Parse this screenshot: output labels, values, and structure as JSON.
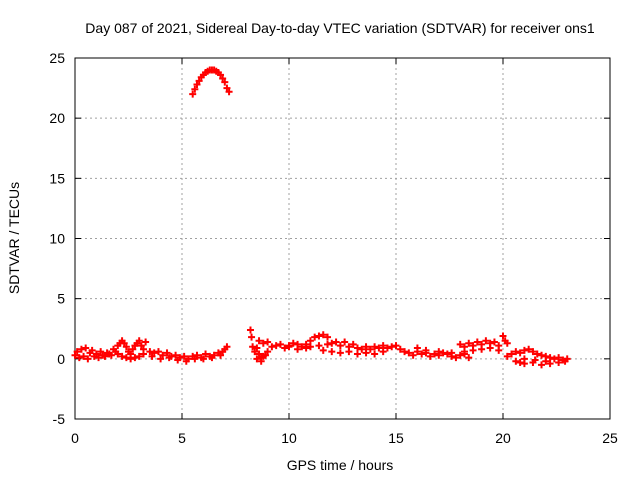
{
  "chart_data": {
    "type": "scatter",
    "title": "Day 087 of 2021, Sidereal Day-to-day VTEC variation (SDTVAR) for receiver ons1",
    "xlabel": "GPS time / hours",
    "ylabel": "SDTVAR / TECUs",
    "xlim": [
      0,
      25
    ],
    "ylim": [
      -5,
      25
    ],
    "xticks": [
      0,
      5,
      10,
      15,
      20,
      25
    ],
    "yticks": [
      -5,
      0,
      5,
      10,
      15,
      20,
      25
    ],
    "x_tick_labels": [
      "0",
      "5",
      "10",
      "15",
      "20",
      "25"
    ],
    "y_tick_labels": [
      "-5",
      "0",
      "5",
      "10",
      "15",
      "20",
      "25"
    ],
    "grid": true,
    "marker": "+",
    "color": "#ff0000",
    "series": [
      {
        "name": "ons1",
        "points": [
          [
            0.0,
            0.3
          ],
          [
            0.1,
            0.6
          ],
          [
            0.2,
            0.1
          ],
          [
            0.3,
            0.8
          ],
          [
            0.4,
            0.2
          ],
          [
            0.5,
            0.9
          ],
          [
            0.6,
            0.0
          ],
          [
            0.7,
            0.5
          ],
          [
            0.8,
            0.7
          ],
          [
            0.9,
            0.2
          ],
          [
            1.0,
            0.4
          ],
          [
            1.1,
            0.1
          ],
          [
            1.2,
            0.6
          ],
          [
            1.3,
            0.3
          ],
          [
            1.4,
            0.2
          ],
          [
            1.5,
            0.5
          ],
          [
            1.6,
            0.4
          ],
          [
            1.7,
            0.3
          ],
          [
            1.8,
            0.8
          ],
          [
            1.9,
            0.6
          ],
          [
            2.0,
            1.1
          ],
          [
            2.1,
            1.3
          ],
          [
            2.2,
            1.5
          ],
          [
            2.3,
            1.3
          ],
          [
            2.4,
            1.0
          ],
          [
            2.5,
            0.6
          ],
          [
            2.6,
            0.4
          ],
          [
            2.7,
            0.8
          ],
          [
            2.8,
            1.1
          ],
          [
            2.9,
            1.3
          ],
          [
            3.0,
            1.5
          ],
          [
            3.1,
            1.1
          ],
          [
            3.2,
            0.8
          ],
          [
            3.3,
            1.4
          ],
          [
            2.0,
            0.4
          ],
          [
            2.2,
            0.2
          ],
          [
            2.4,
            0.1
          ],
          [
            2.6,
            0.0
          ],
          [
            2.8,
            0.1
          ],
          [
            3.0,
            0.2
          ],
          [
            3.2,
            0.4
          ],
          [
            3.5,
            0.6
          ],
          [
            3.7,
            0.5
          ],
          [
            3.9,
            0.6
          ],
          [
            4.1,
            0.3
          ],
          [
            4.3,
            0.5
          ],
          [
            4.5,
            0.2
          ],
          [
            4.7,
            0.3
          ],
          [
            4.9,
            0.1
          ],
          [
            5.1,
            0.2
          ],
          [
            5.3,
            0.0
          ],
          [
            5.5,
            0.2
          ],
          [
            5.7,
            0.3
          ],
          [
            5.9,
            0.1
          ],
          [
            6.1,
            0.4
          ],
          [
            6.3,
            0.2
          ],
          [
            6.5,
            0.3
          ],
          [
            6.7,
            0.5
          ],
          [
            6.9,
            0.6
          ],
          [
            7.0,
            0.8
          ],
          [
            7.1,
            1.0
          ],
          [
            3.6,
            0.2
          ],
          [
            4.0,
            0.0
          ],
          [
            4.4,
            0.1
          ],
          [
            4.8,
            -0.1
          ],
          [
            5.2,
            -0.2
          ],
          [
            5.6,
            0.0
          ],
          [
            6.0,
            0.0
          ],
          [
            6.4,
            0.1
          ],
          [
            6.8,
            0.3
          ],
          [
            5.5,
            22.0
          ],
          [
            5.6,
            22.4
          ],
          [
            5.7,
            22.8
          ],
          [
            5.8,
            23.1
          ],
          [
            5.9,
            23.4
          ],
          [
            6.0,
            23.6
          ],
          [
            6.1,
            23.8
          ],
          [
            6.2,
            23.9
          ],
          [
            6.3,
            24.0
          ],
          [
            6.4,
            24.0
          ],
          [
            6.5,
            24.0
          ],
          [
            6.6,
            23.9
          ],
          [
            6.7,
            23.8
          ],
          [
            6.8,
            23.6
          ],
          [
            6.9,
            23.3
          ],
          [
            7.0,
            23.0
          ],
          [
            7.1,
            22.5
          ],
          [
            7.2,
            22.2
          ],
          [
            8.2,
            2.4
          ],
          [
            8.25,
            1.8
          ],
          [
            8.3,
            1.0
          ],
          [
            8.4,
            0.6
          ],
          [
            8.5,
            0.9
          ],
          [
            8.6,
            0.4
          ],
          [
            8.7,
            0.1
          ],
          [
            8.8,
            0.2
          ],
          [
            8.9,
            0.3
          ],
          [
            9.0,
            0.6
          ],
          [
            8.5,
            0.0
          ],
          [
            8.7,
            -0.2
          ],
          [
            8.6,
            1.5
          ],
          [
            8.8,
            1.3
          ],
          [
            9.0,
            1.4
          ],
          [
            9.2,
            1.0
          ],
          [
            9.4,
            1.1
          ],
          [
            9.6,
            1.2
          ],
          [
            9.8,
            0.9
          ],
          [
            10.0,
            1.0
          ],
          [
            10.2,
            1.3
          ],
          [
            10.4,
            0.8
          ],
          [
            10.6,
            1.0
          ],
          [
            10.8,
            1.2
          ],
          [
            11.0,
            1.5
          ],
          [
            11.2,
            1.8
          ],
          [
            11.4,
            1.9
          ],
          [
            11.6,
            2.0
          ],
          [
            11.8,
            1.8
          ],
          [
            10.0,
            1.1
          ],
          [
            10.4,
            1.2
          ],
          [
            10.8,
            0.9
          ],
          [
            11.0,
            1.0
          ],
          [
            11.4,
            1.1
          ],
          [
            11.8,
            1.2
          ],
          [
            12.0,
            1.3
          ],
          [
            12.2,
            1.4
          ],
          [
            12.4,
            1.1
          ],
          [
            12.6,
            1.4
          ],
          [
            12.8,
            1.0
          ],
          [
            13.0,
            1.2
          ],
          [
            13.2,
            0.9
          ],
          [
            13.4,
            0.8
          ],
          [
            13.6,
            1.0
          ],
          [
            13.8,
            0.8
          ],
          [
            14.0,
            1.0
          ],
          [
            14.2,
            0.9
          ],
          [
            14.4,
            1.1
          ],
          [
            14.6,
            0.9
          ],
          [
            14.8,
            1.0
          ],
          [
            15.0,
            1.1
          ],
          [
            15.2,
            0.8
          ],
          [
            15.4,
            0.6
          ],
          [
            11.6,
            0.7
          ],
          [
            12.0,
            0.6
          ],
          [
            12.4,
            0.5
          ],
          [
            12.8,
            0.6
          ],
          [
            13.2,
            0.4
          ],
          [
            13.6,
            0.5
          ],
          [
            14.0,
            0.4
          ],
          [
            14.4,
            0.6
          ],
          [
            15.6,
            0.5
          ],
          [
            15.8,
            0.3
          ],
          [
            16.0,
            0.6
          ],
          [
            16.2,
            0.4
          ],
          [
            16.4,
            0.5
          ],
          [
            16.6,
            0.2
          ],
          [
            16.8,
            0.4
          ],
          [
            17.0,
            0.3
          ],
          [
            17.2,
            0.5
          ],
          [
            17.4,
            0.4
          ],
          [
            17.6,
            0.2
          ],
          [
            17.8,
            0.1
          ],
          [
            18.0,
            0.3
          ],
          [
            18.2,
            0.4
          ],
          [
            18.4,
            0.1
          ],
          [
            16.0,
            0.9
          ],
          [
            16.4,
            0.7
          ],
          [
            17.0,
            0.6
          ],
          [
            17.6,
            0.5
          ],
          [
            18.0,
            1.2
          ],
          [
            18.2,
            1.0
          ],
          [
            18.4,
            1.3
          ],
          [
            18.6,
            1.1
          ],
          [
            18.8,
            1.4
          ],
          [
            19.0,
            1.2
          ],
          [
            19.2,
            1.5
          ],
          [
            19.4,
            1.3
          ],
          [
            19.6,
            1.4
          ],
          [
            19.8,
            1.1
          ],
          [
            20.0,
            1.9
          ],
          [
            20.1,
            1.5
          ],
          [
            20.2,
            1.3
          ],
          [
            18.2,
            0.6
          ],
          [
            18.6,
            0.7
          ],
          [
            19.0,
            0.8
          ],
          [
            19.4,
            0.9
          ],
          [
            19.8,
            0.7
          ],
          [
            20.2,
            0.2
          ],
          [
            20.4,
            0.4
          ],
          [
            20.6,
            0.6
          ],
          [
            20.8,
            0.5
          ],
          [
            21.0,
            0.7
          ],
          [
            21.2,
            0.8
          ],
          [
            21.4,
            0.6
          ],
          [
            21.6,
            0.4
          ],
          [
            21.8,
            0.3
          ],
          [
            22.0,
            0.2
          ],
          [
            22.2,
            0.1
          ],
          [
            22.4,
            0.0
          ],
          [
            22.6,
            0.1
          ],
          [
            22.8,
            -0.1
          ],
          [
            23.0,
            0.0
          ],
          [
            20.6,
            -0.2
          ],
          [
            20.8,
            -0.3
          ],
          [
            21.0,
            -0.4
          ],
          [
            21.4,
            -0.3
          ],
          [
            21.8,
            -0.5
          ],
          [
            22.2,
            -0.4
          ],
          [
            22.6,
            -0.3
          ],
          [
            22.9,
            -0.2
          ],
          [
            21.0,
            0.0
          ],
          [
            21.5,
            -0.1
          ],
          [
            22.0,
            -0.2
          ]
        ]
      }
    ]
  }
}
